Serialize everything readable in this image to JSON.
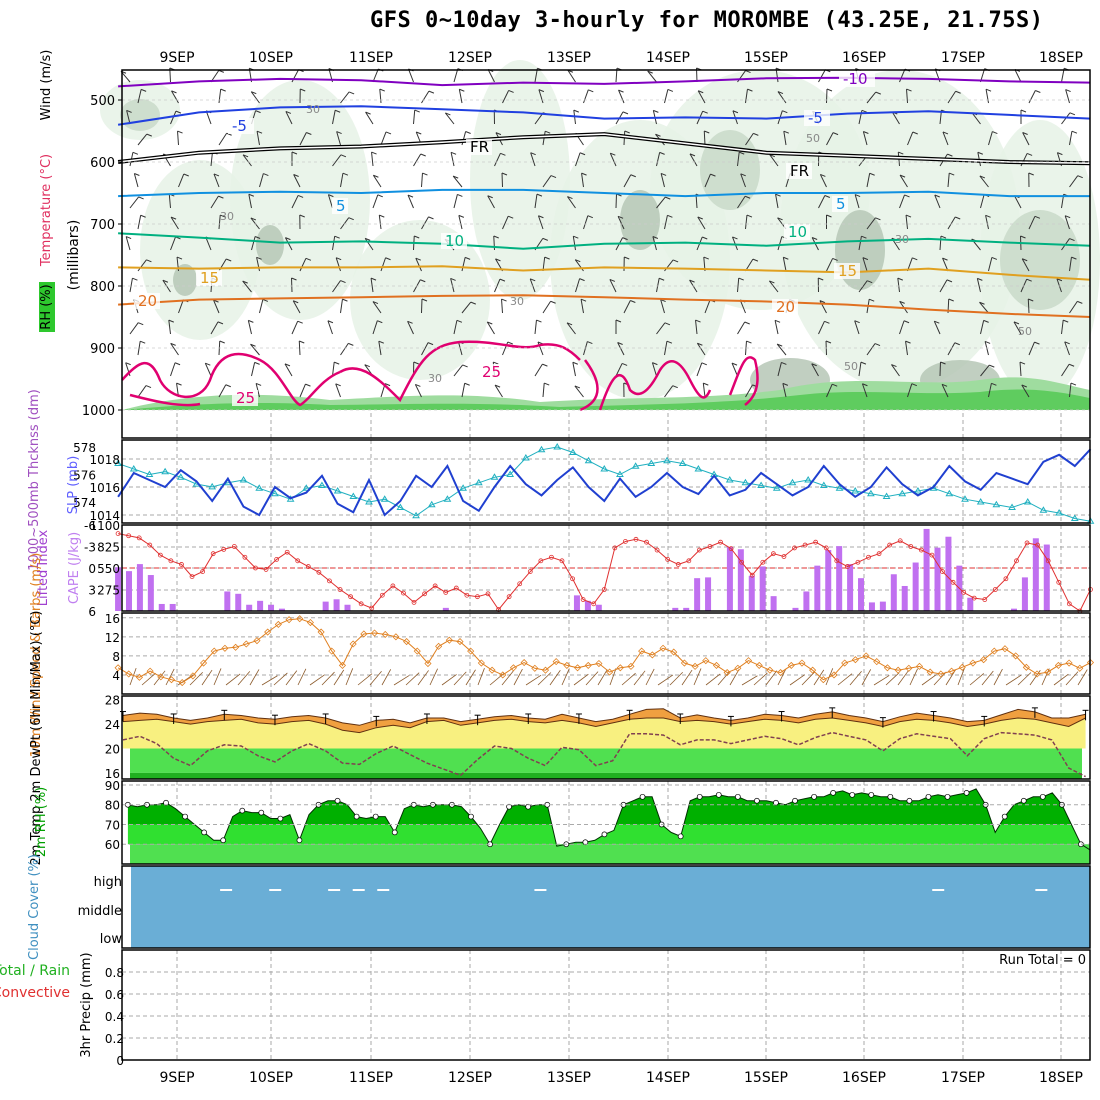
{
  "title": "GFS 0~10day 3-hourly for MOROMBE (43.25E, 21.75S)",
  "colors": {
    "t10": "#8000c0",
    "t5": "#2040e0",
    "t0": "#000000",
    "tp5": "#1090e0",
    "t10p": "#00b080",
    "t15": "#e0a020",
    "t20": "#e07020",
    "t25": "#e00070",
    "slp": "#2040d0",
    "thk": "#20b0c0",
    "cape": "#c070f0",
    "li": "#e03030",
    "wind": "#e08020",
    "temp": "#f0a040",
    "rh": "#00b000",
    "cloud": "#6aaed6",
    "rain": "#40c040"
  },
  "chart_data": [
    {
      "panel": "upper-air",
      "type": "heatmap",
      "x_ticks": [
        "9SEP",
        "10SEP",
        "11SEP",
        "12SEP",
        "13SEP",
        "14SEP",
        "15SEP",
        "16SEP",
        "17SEP",
        "18SEP"
      ],
      "y_ticks": [
        "500",
        "600",
        "700",
        "800",
        "900",
        "1000"
      ],
      "ylabel_wind": "Wind (m/s)",
      "ylabel_temp": "Temperature (°C)",
      "ylabel_rh": "RH (%)",
      "ylabel_mb": "(millibars)",
      "contour_labels": {
        "t10": "-10",
        "t5": "-5",
        "t0": "FR",
        "tp5": "5",
        "t10p": "10",
        "t15": "15",
        "t20": "20",
        "t25": "25",
        "rh30": "30",
        "rh50": "50"
      },
      "isotherms": {
        "t10": [
          478,
          470,
          466,
          468,
          476,
          472,
          474,
          470,
          465,
          464,
          466,
          470,
          472
        ],
        "t5": [
          540,
          520,
          512,
          510,
          515,
          520,
          530,
          528,
          530,
          522,
          518,
          524,
          530
        ],
        "t0": [
          600,
          585,
          578,
          575,
          568,
          560,
          555,
          570,
          585,
          590,
          595,
          600,
          602
        ],
        "tp5": [
          655,
          650,
          648,
          650,
          645,
          645,
          650,
          655,
          650,
          650,
          648,
          655,
          655
        ],
        "t10p": [
          715,
          722,
          730,
          728,
          732,
          740,
          732,
          730,
          735,
          728,
          724,
          730,
          735
        ],
        "t15": [
          770,
          772,
          770,
          770,
          768,
          775,
          770,
          772,
          775,
          778,
          772,
          782,
          790
        ],
        "t20": [
          830,
          822,
          820,
          818,
          816,
          815,
          818,
          822,
          825,
          830,
          838,
          845,
          850
        ]
      }
    },
    {
      "panel": "slp-thickness",
      "type": "line",
      "ylabel_thk": "1000~500mb Thcknss (dm)",
      "ylabel_slp": "SLP (mb)",
      "thk_ticks": [
        "574",
        "576",
        "578"
      ],
      "slp_ticks": [
        "1014",
        "1016",
        "1018"
      ],
      "series": [
        {
          "name": "SLP",
          "values": [
            1015.3,
            1017.0,
            1016.5,
            1016.0,
            1017.2,
            1016.4,
            1015.0,
            1016.6,
            1014.6,
            1014.0,
            1016.0,
            1015.2,
            1015.6,
            1016.8,
            1014.8,
            1014.2,
            1016.5,
            1014.0,
            1015.0,
            1016.8,
            1016.0,
            1017.5,
            1015.0,
            1014.3,
            1016.0,
            1017.5,
            1016.2,
            1015.4,
            1016.5,
            1017.4,
            1016.0,
            1015.0,
            1016.6,
            1015.3,
            1016.0,
            1017.0,
            1016.0,
            1015.5,
            1016.8,
            1015.4,
            1015.8,
            1017.0,
            1016.2,
            1015.4,
            1016.0,
            1017.5,
            1016.2,
            1015.3,
            1016.0,
            1017.4,
            1016.2,
            1015.4,
            1016.0,
            1017.5,
            1016.4,
            1015.8,
            1017.0,
            1016.6,
            1016.2,
            1017.8,
            1018.3,
            1017.5,
            1018.7
          ]
        },
        {
          "name": "Thickness",
          "values": [
            576.8,
            576.4,
            576.0,
            576.2,
            575.8,
            575.3,
            575.1,
            575.4,
            575.6,
            575.0,
            574.6,
            574.2,
            575.0,
            575.2,
            574.8,
            574.4,
            574.0,
            574.2,
            573.6,
            573.0,
            573.8,
            574.2,
            575.0,
            575.4,
            575.8,
            576.0,
            577.2,
            577.8,
            578.0,
            577.6,
            577.0,
            576.4,
            576.0,
            576.6,
            576.8,
            577.0,
            576.8,
            576.4,
            576.0,
            575.6,
            575.4,
            575.2,
            575.0,
            575.4,
            575.6,
            575.2,
            575.0,
            574.8,
            574.6,
            574.4,
            574.6,
            574.8,
            575.0,
            574.6,
            574.2,
            574.0,
            573.8,
            573.6,
            574.0,
            573.4,
            573.2,
            572.8,
            572.6
          ]
        }
      ]
    },
    {
      "panel": "cape-li",
      "type": "bar",
      "ylabel_li": "Lifted Index",
      "ylabel_cape": "CAPE (J/kg)",
      "li_ticks": [
        "-6",
        "-3",
        "0",
        "3",
        "6"
      ],
      "cape_ticks": [
        "275",
        "550",
        "825",
        "1100"
      ],
      "cape": [
        560,
        510,
        600,
        460,
        90,
        90,
        0,
        0,
        0,
        0,
        250,
        220,
        80,
        130,
        80,
        30,
        0,
        0,
        0,
        120,
        150,
        80,
        0,
        0,
        0,
        0,
        0,
        0,
        0,
        0,
        40,
        0,
        0,
        0,
        0,
        0,
        0,
        0,
        0,
        0,
        0,
        0,
        200,
        130,
        80,
        0,
        0,
        0,
        0,
        0,
        0,
        40,
        40,
        420,
        430,
        0,
        820,
        790,
        450,
        570,
        190,
        0,
        40,
        250,
        580,
        780,
        830,
        600,
        420,
        110,
        120,
        470,
        320,
        620,
        1050,
        810,
        950,
        580,
        170,
        0,
        0,
        0,
        30,
        430,
        930,
        850,
        0,
        0,
        0,
        0
      ],
      "li": [
        -4.8,
        -4.5,
        -4.2,
        -3.2,
        -1.8,
        -1.0,
        -0.5,
        1.2,
        0.5,
        -2.0,
        -2.6,
        -3.0,
        -1.5,
        0.0,
        0.2,
        -1.2,
        -2.2,
        -1.0,
        -0.2,
        0.6,
        1.8,
        3.0,
        4.0,
        5.0,
        5.6,
        3.8,
        2.5,
        3.5,
        4.8,
        3.6,
        2.5,
        3.4,
        2.8,
        3.8,
        4.0,
        3.6,
        5.8,
        4.0,
        2.2,
        0.5,
        -1.0,
        -1.5,
        -1.0,
        1.5,
        4.4,
        5.0,
        3.0,
        -2.8,
        -3.7,
        -4.0,
        -3.6,
        -2.5,
        -1.2,
        -0.5,
        -1.0,
        -2.5,
        -3.0,
        -3.6,
        -2.7,
        -0.8,
        1.0,
        -0.8,
        -2.0,
        -1.6,
        -2.8,
        -3.2,
        -3.6,
        -2.8,
        -1.0,
        -0.2,
        -0.8,
        -1.5,
        -2.0,
        -3.2,
        -3.8,
        -3.0,
        -2.5,
        -1.8,
        0.5,
        2.0,
        3.4,
        4.2,
        4.4,
        3.0,
        1.5,
        -1.0,
        -3.5,
        -3.2,
        -1.0,
        2.0,
        5.0,
        6.0,
        3.0
      ]
    },
    {
      "panel": "wind10m",
      "type": "line",
      "ylabel": "10m Wind Speed & Barbs (m/s)",
      "y_ticks": [
        "4",
        "8",
        "12",
        "16"
      ],
      "values": [
        5.5,
        4.2,
        3.5,
        4.8,
        3.6,
        3.0,
        2.4,
        3.8,
        6.5,
        9.0,
        9.6,
        9.8,
        10.5,
        11.2,
        13.0,
        14.6,
        15.6,
        15.8,
        15.0,
        13.0,
        9.0,
        6.0,
        10.5,
        12.6,
        12.8,
        12.5,
        12.0,
        11.0,
        9.0,
        6.4,
        10.0,
        11.3,
        11.0,
        9.0,
        6.5,
        5.0,
        4.0,
        5.5,
        6.6,
        5.4,
        5.0,
        6.8,
        6.0,
        5.5,
        6.0,
        6.4,
        4.6,
        5.5,
        5.8,
        9.0,
        8.2,
        9.6,
        8.8,
        6.5,
        5.8,
        7.0,
        6.0,
        4.5,
        5.4,
        7.0,
        6.0,
        5.0,
        4.5,
        6.0,
        6.5,
        5.0,
        3.0,
        4.0,
        6.5,
        7.2,
        8.0,
        6.8,
        5.5,
        5.0,
        5.4,
        5.8,
        4.6,
        4.2,
        4.8,
        5.6,
        6.5,
        7.2,
        9.0,
        9.5,
        8.0,
        5.6,
        4.2,
        4.6,
        6.0,
        6.5,
        5.4,
        6.6
      ]
    },
    {
      "panel": "temp2m",
      "type": "area",
      "ylabel": "2m Temp 2m DewPt (6hr Min/Max) (°C)",
      "y_ticks": [
        "16",
        "20",
        "24",
        "28"
      ],
      "tmax": [
        25.4,
        25.8,
        25.6,
        25.0,
        24.6,
        25.0,
        25.6,
        25.4,
        25.0,
        24.8,
        25.2,
        25.4,
        25.0,
        24.2,
        23.8,
        24.6,
        24.8,
        24.2,
        25.0,
        25.0,
        24.4,
        24.8,
        25.2,
        25.4,
        25.0,
        24.8,
        25.6,
        25.0,
        24.4,
        24.8,
        25.6,
        26.4,
        26.5,
        25.0,
        25.5,
        25.0,
        24.6,
        25.0,
        25.6,
        25.4,
        25.0,
        25.6,
        26.0,
        25.4,
        25.0,
        24.4,
        25.2,
        25.8,
        25.4,
        25.0,
        24.4,
        24.6,
        25.5,
        26.4,
        26.0,
        25.0,
        25.0,
        25.6
      ],
      "tmin": [
        24.4,
        24.6,
        24.8,
        24.4,
        24.0,
        24.4,
        24.6,
        24.8,
        24.2,
        24.0,
        24.4,
        24.6,
        24.0,
        23.0,
        22.6,
        23.4,
        23.8,
        23.4,
        24.4,
        24.6,
        23.8,
        24.2,
        24.6,
        24.8,
        24.4,
        24.2,
        24.6,
        24.2,
        23.6,
        24.2,
        24.8,
        25.0,
        25.0,
        24.4,
        24.6,
        24.4,
        24.0,
        24.4,
        24.8,
        24.6,
        24.2,
        24.8,
        25.0,
        24.6,
        24.2,
        23.6,
        24.4,
        24.8,
        24.6,
        24.2,
        23.6,
        24.0,
        24.6,
        25.0,
        24.8,
        24.2,
        23.6,
        25.0
      ],
      "dewpt": [
        21.4,
        22.0,
        20.8,
        18.4,
        17.2,
        19.6,
        20.6,
        20.4,
        18.8,
        17.8,
        19.6,
        20.8,
        19.6,
        17.6,
        17.4,
        19.2,
        20.4,
        19.0,
        17.6,
        16.6,
        15.6,
        18.2,
        20.4,
        20.0,
        18.4,
        17.2,
        20.2,
        19.8,
        17.2,
        18.0,
        22.4,
        22.4,
        22.2,
        20.6,
        21.4,
        21.4,
        20.8,
        21.4,
        22.0,
        21.6,
        20.6,
        21.8,
        22.6,
        22.0,
        21.4,
        19.6,
        21.6,
        22.4,
        22.0,
        21.6,
        18.8,
        21.6,
        22.6,
        22.4,
        22.2,
        21.4,
        16.8,
        15.4
      ]
    },
    {
      "panel": "rh2m",
      "type": "area",
      "ylabel": "2m RH (%)",
      "y_ticks": [
        "60",
        "70",
        "80",
        "90"
      ],
      "values": [
        80,
        79,
        80,
        80,
        81,
        78,
        74,
        70,
        66,
        62,
        62,
        74,
        77,
        76,
        76,
        73,
        73,
        75,
        62,
        75,
        80,
        82,
        82,
        80,
        74,
        73,
        74,
        74,
        66,
        78,
        80,
        79,
        80,
        80,
        80,
        79,
        74,
        68,
        60,
        70,
        79,
        80,
        79,
        80,
        80,
        59,
        60,
        61,
        61,
        62,
        65,
        67,
        80,
        82,
        84,
        84,
        70,
        66,
        64,
        82,
        84,
        84,
        85,
        84,
        84,
        82,
        82,
        82,
        81,
        80,
        82,
        83,
        84,
        84,
        86,
        87,
        85,
        86,
        85,
        84,
        84,
        82,
        82,
        82,
        84,
        85,
        84,
        85,
        86,
        88,
        80,
        66,
        74,
        80,
        82,
        84,
        84,
        86,
        80,
        70,
        60,
        57
      ]
    },
    {
      "panel": "cloud",
      "type": "heatmap",
      "ylabel": "Cloud Cover (%)",
      "levels": [
        "high",
        "middle",
        "low"
      ],
      "high_gaps": [
        9.5,
        10.0,
        10.6,
        10.85,
        11.1,
        12.7,
        16.75,
        17.8
      ]
    },
    {
      "panel": "precip",
      "type": "bar",
      "ylabel_total": "Total / Rain",
      "ylabel_conv": "Convective",
      "ylabel_precip": "3hr Precip (mm)",
      "run_total": "Run Total = 0",
      "y_ticks": [
        "0",
        "0.2",
        "0.4",
        "0.6",
        "0.8"
      ],
      "values": []
    }
  ]
}
